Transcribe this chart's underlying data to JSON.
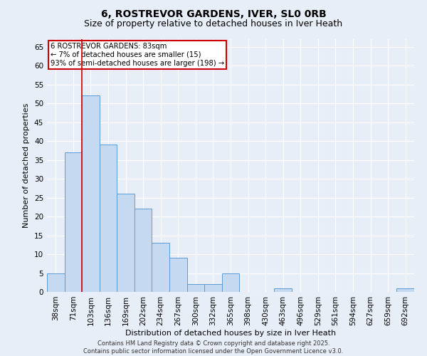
{
  "title": "6, ROSTREVOR GARDENS, IVER, SL0 0RB",
  "subtitle": "Size of property relative to detached houses in Iver Heath",
  "xlabel": "Distribution of detached houses by size in Iver Heath",
  "ylabel": "Number of detached properties",
  "categories": [
    "38sqm",
    "71sqm",
    "103sqm",
    "136sqm",
    "169sqm",
    "202sqm",
    "234sqm",
    "267sqm",
    "300sqm",
    "332sqm",
    "365sqm",
    "398sqm",
    "430sqm",
    "463sqm",
    "496sqm",
    "529sqm",
    "561sqm",
    "594sqm",
    "627sqm",
    "659sqm",
    "692sqm"
  ],
  "values": [
    5,
    37,
    52,
    39,
    26,
    22,
    13,
    9,
    2,
    2,
    5,
    0,
    0,
    1,
    0,
    0,
    0,
    0,
    0,
    0,
    1
  ],
  "bar_color": "#c5d9f0",
  "bar_edge_color": "#5b9bd5",
  "vline_color": "#cc0000",
  "annotation_text": "6 ROSTREVOR GARDENS: 83sqm\n← 7% of detached houses are smaller (15)\n93% of semi-detached houses are larger (198) →",
  "annotation_box_color": "#cc0000",
  "ylim": [
    0,
    67
  ],
  "yticks": [
    0,
    5,
    10,
    15,
    20,
    25,
    30,
    35,
    40,
    45,
    50,
    55,
    60,
    65
  ],
  "background_color": "#e8eef8",
  "grid_color": "#ffffff",
  "footer": "Contains HM Land Registry data © Crown copyright and database right 2025.\nContains public sector information licensed under the Open Government Licence v3.0.",
  "title_fontsize": 10,
  "subtitle_fontsize": 9,
  "axis_fontsize": 8,
  "tick_fontsize": 7.5,
  "footer_fontsize": 6
}
